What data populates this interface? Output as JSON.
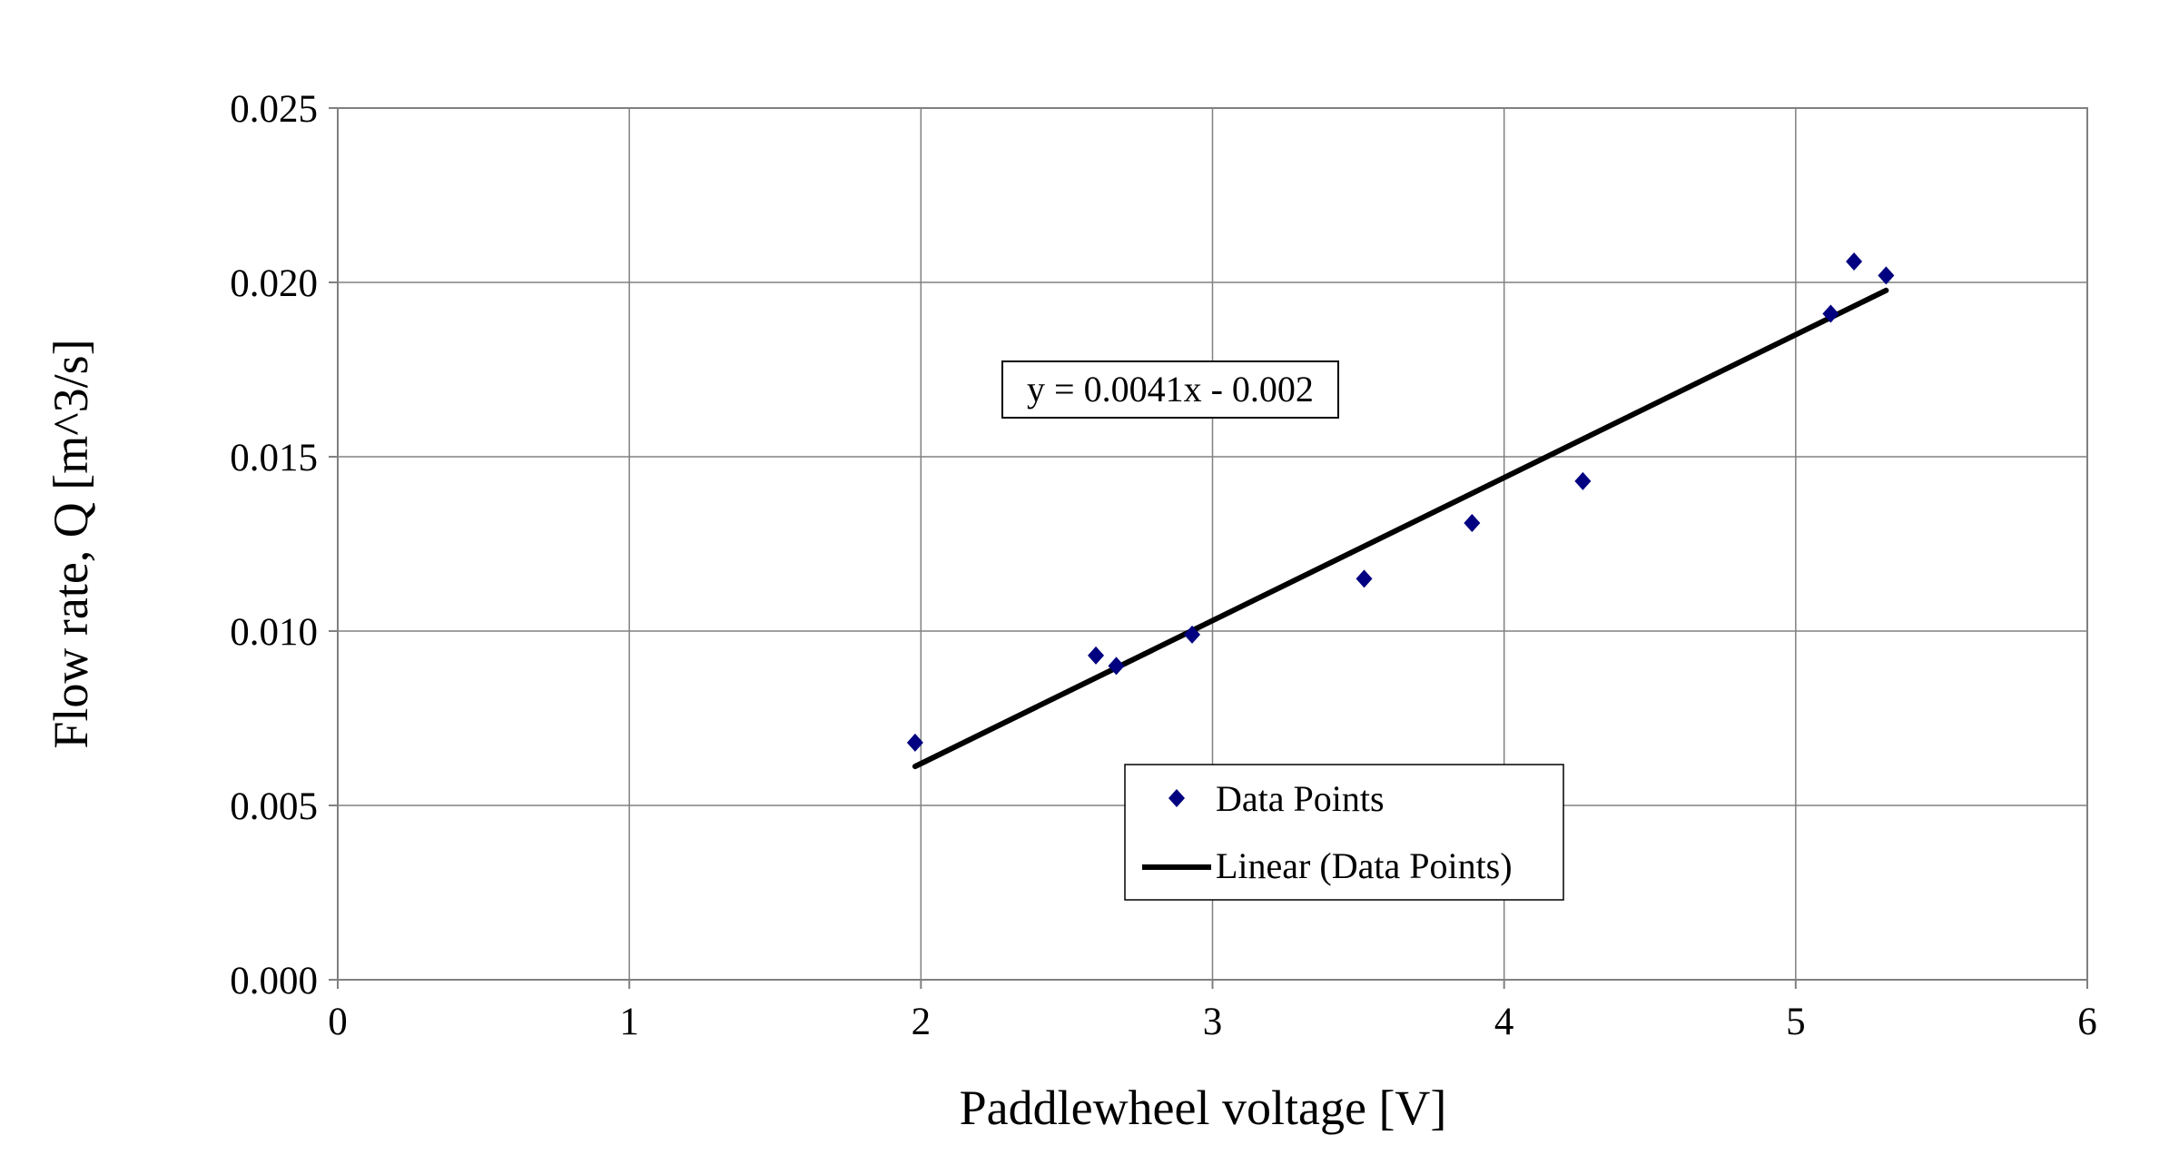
{
  "chart_data": {
    "type": "scatter",
    "title": "",
    "xlabel": "Paddlewheel voltage [V]",
    "ylabel": "Flow rate, Q [m^3/s]",
    "xlim": [
      0,
      6
    ],
    "ylim": [
      0,
      0.025
    ],
    "xticks": [
      "0",
      "1",
      "2",
      "3",
      "4",
      "5",
      "6"
    ],
    "yticks": [
      "0.000",
      "0.005",
      "0.010",
      "0.015",
      "0.020",
      "0.025"
    ],
    "grid": true,
    "legend_position": "bottom-center",
    "series": [
      {
        "name": "Data Points",
        "marker": "diamond",
        "color": "#000080",
        "x": [
          1.98,
          2.6,
          2.67,
          2.93,
          3.52,
          3.89,
          4.27,
          5.12,
          5.2,
          5.31
        ],
        "y": [
          0.0068,
          0.0093,
          0.009,
          0.0099,
          0.0115,
          0.0131,
          0.0143,
          0.0191,
          0.0206,
          0.0202
        ]
      },
      {
        "name": "Linear (Data Points)",
        "type": "line",
        "color": "#000000",
        "slope": 0.0041,
        "intercept": -0.002,
        "x_range": [
          1.98,
          5.31
        ]
      }
    ],
    "annotation": "y = 0.0041x - 0.002"
  }
}
